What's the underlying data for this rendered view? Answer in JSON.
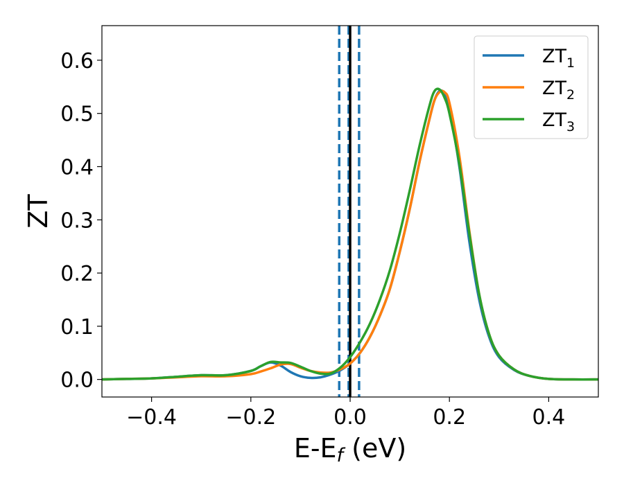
{
  "chart_data": {
    "type": "line",
    "xlabel": "E-E_f (eV)",
    "xlabel_parts": {
      "main": "E-E",
      "sub": "f",
      "tail": " (eV)"
    },
    "ylabel": "ZT",
    "xlim": [
      -0.5,
      0.5
    ],
    "ylim": [
      -0.033,
      0.665
    ],
    "xticks": [
      -0.4,
      -0.2,
      0.0,
      0.2,
      0.4
    ],
    "xtick_labels": [
      "−0.4",
      "−0.2",
      "0.0",
      "0.2",
      "0.4"
    ],
    "yticks": [
      0.0,
      0.1,
      0.2,
      0.3,
      0.4,
      0.5,
      0.6
    ],
    "ytick_labels": [
      "0.0",
      "0.1",
      "0.2",
      "0.3",
      "0.4",
      "0.5",
      "0.6"
    ],
    "grid": false,
    "legend_position": "top-right",
    "vertical_lines": [
      {
        "x": -0.022,
        "style": "dashed",
        "color": "#1f77b4"
      },
      {
        "x": -0.003,
        "style": "dashed",
        "color": "#1f77b4"
      },
      {
        "x": 0.0,
        "style": "solid",
        "color": "#000000"
      },
      {
        "x": 0.018,
        "style": "dashed",
        "color": "#1f77b4"
      }
    ],
    "x": [
      -0.5,
      -0.45,
      -0.4,
      -0.35,
      -0.3,
      -0.25,
      -0.2,
      -0.18,
      -0.16,
      -0.14,
      -0.12,
      -0.1,
      -0.08,
      -0.06,
      -0.04,
      -0.02,
      0.0,
      0.02,
      0.04,
      0.06,
      0.08,
      0.1,
      0.12,
      0.14,
      0.16,
      0.17,
      0.18,
      0.19,
      0.2,
      0.22,
      0.24,
      0.26,
      0.28,
      0.3,
      0.33,
      0.36,
      0.4,
      0.45,
      0.5
    ],
    "series": [
      {
        "name": "ZT",
        "name_sub": "1",
        "color": "#1f77b4",
        "values": [
          0.0,
          0.001,
          0.002,
          0.005,
          0.008,
          0.008,
          0.016,
          0.025,
          0.032,
          0.026,
          0.014,
          0.006,
          0.003,
          0.004,
          0.009,
          0.017,
          0.03,
          0.05,
          0.08,
          0.12,
          0.17,
          0.24,
          0.32,
          0.41,
          0.49,
          0.525,
          0.542,
          0.538,
          0.51,
          0.4,
          0.26,
          0.15,
          0.08,
          0.042,
          0.018,
          0.007,
          0.001,
          0.0,
          0.0
        ]
      },
      {
        "name": "ZT",
        "name_sub": "2",
        "color": "#ff7f0e",
        "values": [
          0.0,
          0.001,
          0.002,
          0.004,
          0.006,
          0.006,
          0.01,
          0.015,
          0.021,
          0.028,
          0.029,
          0.022,
          0.016,
          0.013,
          0.013,
          0.019,
          0.03,
          0.05,
          0.08,
          0.12,
          0.17,
          0.24,
          0.32,
          0.41,
          0.49,
          0.525,
          0.54,
          0.54,
          0.52,
          0.42,
          0.28,
          0.16,
          0.085,
          0.045,
          0.019,
          0.007,
          0.001,
          0.0,
          0.0
        ]
      },
      {
        "name": "ZT",
        "name_sub": "3",
        "color": "#2ca02c",
        "values": [
          0.0,
          0.001,
          0.002,
          0.005,
          0.008,
          0.008,
          0.016,
          0.025,
          0.033,
          0.032,
          0.031,
          0.024,
          0.016,
          0.011,
          0.011,
          0.022,
          0.042,
          0.07,
          0.105,
          0.15,
          0.205,
          0.275,
          0.355,
          0.44,
          0.515,
          0.542,
          0.545,
          0.53,
          0.5,
          0.405,
          0.275,
          0.16,
          0.085,
          0.045,
          0.019,
          0.007,
          0.001,
          0.0,
          0.0
        ]
      }
    ]
  }
}
